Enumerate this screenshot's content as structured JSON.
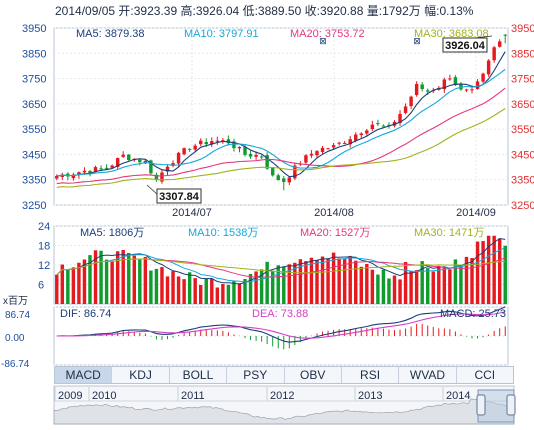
{
  "header": {
    "date": "2014/09/05",
    "open_label": "开:",
    "open": "3923.39",
    "high_label": "高:",
    "high": "3926.04",
    "low_label": "低:",
    "low": "3889.50",
    "close_label": "收:",
    "close": "3920.88",
    "volume_label": "量:",
    "volume": "1792万",
    "change_label": "幅:",
    "change": "0.13%"
  },
  "colors": {
    "up": "#e6191f",
    "down": "#0f9b2e",
    "ma5": "#1b3d7a",
    "ma10": "#18a7d8",
    "ma20": "#e5377e",
    "ma30": "#a3b21c",
    "left_axis": "#1e4fa0",
    "right_axis": "#e03030"
  },
  "price_panel": {
    "ma_labels": [
      {
        "name": "MA5",
        "value": "3879.38",
        "color": "#1b3d7a"
      },
      {
        "name": "MA10",
        "value": "3797.91",
        "color": "#18a7d8"
      },
      {
        "name": "MA20",
        "value": "3753.72",
        "color": "#e5377e"
      },
      {
        "name": "MA30",
        "value": "3683.08",
        "color": "#a3b21c"
      }
    ],
    "y_ticks": [
      "3950",
      "3850",
      "3750",
      "3650",
      "3550",
      "3450",
      "3350",
      "3250"
    ],
    "max_callout": "3926.04",
    "min_callout": "3307.84",
    "date_ticks": [
      "2014/07",
      "2014/08",
      "2014/09"
    ]
  },
  "volume_panel": {
    "ma_labels": [
      {
        "name": "MA5",
        "value": "1806万",
        "color": "#1b3d7a"
      },
      {
        "name": "MA10",
        "value": "1538万",
        "color": "#18a7d8"
      },
      {
        "name": "MA20",
        "value": "1527万",
        "color": "#e5377e"
      },
      {
        "name": "MA30",
        "value": "1471万",
        "color": "#a3b21c"
      }
    ],
    "y_ticks": [
      "24",
      "18",
      "12",
      "6"
    ],
    "unit": "x百万"
  },
  "macd_panel": {
    "dif_label": "DIF: 86.74",
    "dea_label": "DEA: 73.88",
    "macd_label": "MACD: 25.73",
    "y_ticks": [
      "86.74",
      "0.00",
      "-86.74"
    ]
  },
  "tabs": [
    {
      "label": "MACD",
      "active": true
    },
    {
      "label": "KDJ",
      "active": false
    },
    {
      "label": "BOLL",
      "active": false
    },
    {
      "label": "PSY",
      "active": false
    },
    {
      "label": "OBV",
      "active": false
    },
    {
      "label": "RSI",
      "active": false
    },
    {
      "label": "WVAD",
      "active": false
    },
    {
      "label": "CCI",
      "active": false
    }
  ],
  "navigator": {
    "years": [
      "2009",
      "2010",
      "2011",
      "2012",
      "2013",
      "2014"
    ]
  },
  "chart_data": {
    "type": "candlestick",
    "x_range": [
      "2014/06/17",
      "2014/09/05"
    ],
    "price": {
      "ylim": [
        3250,
        3950
      ],
      "anchors": [
        [
          0,
          3365
        ],
        [
          5,
          3385
        ],
        [
          9,
          3395
        ],
        [
          12,
          3445
        ],
        [
          16,
          3420
        ],
        [
          18,
          3348
        ],
        [
          20,
          3410
        ],
        [
          24,
          3480
        ],
        [
          28,
          3505
        ],
        [
          31,
          3500
        ],
        [
          34,
          3450
        ],
        [
          37,
          3445
        ],
        [
          39,
          3360
        ],
        [
          41,
          3345
        ],
        [
          44,
          3420
        ],
        [
          47,
          3470
        ],
        [
          50,
          3480
        ],
        [
          54,
          3530
        ],
        [
          57,
          3570
        ],
        [
          60,
          3555
        ],
        [
          63,
          3640
        ],
        [
          65,
          3720
        ],
        [
          67,
          3700
        ],
        [
          69,
          3720
        ],
        [
          71,
          3760
        ],
        [
          73,
          3700
        ],
        [
          75,
          3695
        ],
        [
          77,
          3760
        ],
        [
          79,
          3870
        ],
        [
          81,
          3921
        ]
      ],
      "high": 3926.04,
      "low": 3307.84,
      "last": {
        "open": 3923.39,
        "high": 3926.04,
        "low": 3889.5,
        "close": 3920.88
      }
    },
    "volume": {
      "unit": "x百万",
      "ylim": [
        0,
        24
      ],
      "last": 17.92
    },
    "macd": {
      "ylim": [
        -86.74,
        86.74
      ],
      "dif": 86.74,
      "dea": 73.88,
      "macd": 25.73
    }
  }
}
